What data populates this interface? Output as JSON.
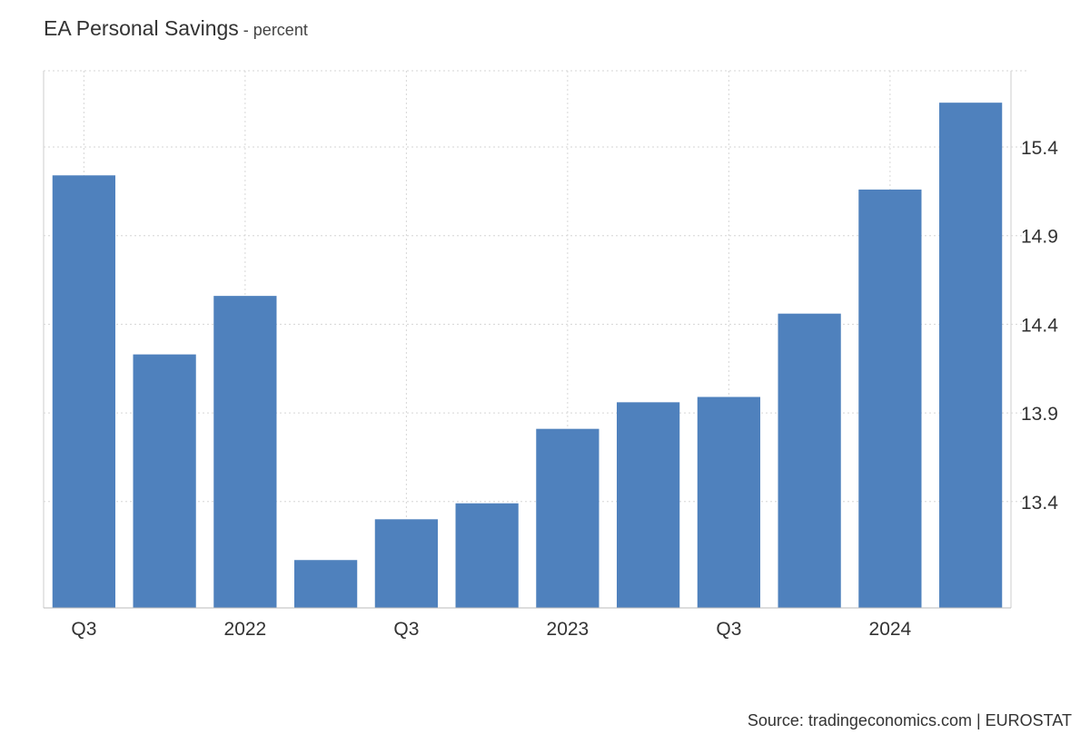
{
  "header": {
    "title": "EA Personal Savings",
    "unit_suffix": " - percent"
  },
  "footer": {
    "source": "Source: tradingeconomics.com | EUROSTAT"
  },
  "chart_data": {
    "type": "bar",
    "title": "EA Personal Savings",
    "subtitle": "percent",
    "categories": [
      "Q3",
      "",
      "2022",
      "",
      "Q3",
      "",
      "2023",
      "",
      "Q3",
      "",
      "2024",
      ""
    ],
    "x_tick_labels": [
      "Q3",
      "2022",
      "Q3",
      "2023",
      "Q3",
      "2024"
    ],
    "values": [
      15.24,
      14.23,
      14.56,
      13.07,
      13.3,
      13.39,
      13.81,
      13.96,
      13.99,
      14.46,
      15.16,
      15.65
    ],
    "ylim": [
      12.8,
      15.83
    ],
    "y_ticks": [
      13.4,
      13.9,
      14.4,
      14.9,
      15.4
    ],
    "y_axis_side": "right",
    "bar_color": "#4f81bd",
    "grid": true
  }
}
